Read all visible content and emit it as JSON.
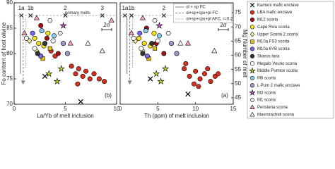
{
  "chart_data": [
    {
      "type": "scatter",
      "panel_label": "(b)",
      "x_label": "La/Yb of melt inclusion",
      "y_label": "Fo content of host olivine",
      "xlim": [
        0,
        10
      ],
      "xticks": [
        0,
        5,
        10
      ],
      "ylim": [
        70,
        90
      ],
      "yticks": [
        70,
        75,
        80,
        85,
        90
      ],
      "error_label": "2σ",
      "primary_melts": {
        "label": "primary melts",
        "fo": 87.5,
        "names": [
          "1a",
          "1b",
          "2",
          "3"
        ],
        "x": [
          0.7,
          1.6,
          5,
          8.6
        ]
      },
      "series": [
        {
          "name": "Kameni mafic enclave",
          "color": "#000000",
          "marker": "x",
          "x": [
            3.0,
            6.5
          ],
          "values": [
            75.5,
            70.5
          ]
        },
        {
          "name": "LBA mafic enclave",
          "color": "#d7301f",
          "marker": "circle",
          "x": [
            5.6,
            6.0,
            6.3,
            6.7,
            7.0,
            7.4,
            7.8,
            8.3,
            8.8,
            6.2,
            3.6,
            4.0
          ],
          "values": [
            77.5,
            76,
            77,
            75.5,
            76.5,
            75,
            76,
            75,
            74.5,
            74,
            80.5,
            79.5
          ]
        },
        {
          "name": "M12 scoria",
          "color": "#a50f15",
          "marker": "circle",
          "x": [
            2.6,
            3.2,
            4.3
          ],
          "values": [
            85.5,
            83,
            80
          ]
        },
        {
          "name": "Cape Riva scoria",
          "color": "#f7e11b",
          "marker": "circle",
          "x": [
            2.0,
            2.4,
            2.9,
            3.3
          ],
          "values": [
            83,
            82,
            81.5,
            84
          ]
        },
        {
          "name": "Upper Scoria 2 scoria",
          "color": "#fff3a0",
          "marker": "diamond",
          "x": [
            1.5,
            2.2
          ],
          "values": [
            82.5,
            80.5
          ]
        },
        {
          "name": "M10a FS3 scoria",
          "color": "#e8c400",
          "marker": "square",
          "x": [
            2.8,
            3.5
          ],
          "values": [
            79,
            81
          ]
        },
        {
          "name": "M10a 6YB scoria",
          "color": "#7b68ee",
          "marker": "circle",
          "x": [
            1.8,
            2.6
          ],
          "values": [
            84,
            79.5
          ]
        },
        {
          "name": "Skaros lava",
          "color": "#333333",
          "marker": "circle",
          "x": [
            3.0,
            2.3
          ],
          "values": [
            82,
            80
          ]
        },
        {
          "name": "Megalo Vouno scoria",
          "color": "#ffffff",
          "marker": "circle",
          "x": [
            1.2,
            2.0,
            3.8
          ],
          "values": [
            83,
            81,
            82.5
          ]
        },
        {
          "name": "Middle Pumice scoria",
          "color": "#b5e61d",
          "marker": "star",
          "x": [
            3.4,
            4.6,
            4.2
          ],
          "values": [
            76,
            77,
            74.5
          ]
        },
        {
          "name": "M6 scoria",
          "color": "#87ceeb",
          "marker": "circle",
          "x": [
            2.7,
            3.9
          ],
          "values": [
            84.5,
            83.5
          ]
        },
        {
          "name": "L Pum 2 mafic enclave",
          "color": "#9a9acb",
          "marker": "circle",
          "x": [
            5.2,
            4.8
          ],
          "values": [
            80,
            82
          ]
        },
        {
          "name": "M3 scoria",
          "color": "#c653c6",
          "marker": "star",
          "x": [
            4.8
          ],
          "values": [
            85.5
          ]
        },
        {
          "name": "M1 scoria",
          "color": "#ffffff",
          "marker": "hexagon",
          "x": [
            3.5,
            4.5
          ],
          "values": [
            86.5,
            84
          ]
        },
        {
          "name": "Peristeria scoria",
          "color": "#f4a6b8",
          "marker": "triangle",
          "x": [
            1.0,
            9.5,
            5.5,
            2.2
          ],
          "values": [
            84,
            86.5,
            82,
            87
          ]
        },
        {
          "name": "Mavrorachidi scoria",
          "color": "#ffffff",
          "marker": "triangle",
          "x": [
            7.2,
            8.6
          ],
          "values": [
            82,
            80.5
          ]
        }
      ]
    },
    {
      "type": "scatter",
      "panel_label": "(a)",
      "x_label": "Th (ppm) of melt inclusion",
      "y2_label": "Mg Number of melt",
      "xlim": [
        0,
        15
      ],
      "xticks": [
        0,
        5,
        10,
        15
      ],
      "ylim": [
        70,
        90
      ],
      "y2lim": [
        42.75,
        78.5
      ],
      "y2ticks": [
        45,
        50,
        55,
        60,
        65,
        70,
        75
      ],
      "error_label": "2σ",
      "models": [
        "ol + sp FC",
        "ol+sp+cpx+pl FC",
        "ol+sp+cpx+pl AFC, r=0.2"
      ],
      "primary_melts": {
        "label": "primary melts",
        "fo": 87.5,
        "names": [
          "1a",
          "1b",
          "2",
          "3"
        ],
        "x": [
          0.65,
          1.5,
          5.8,
          11.9
        ]
      },
      "series": [
        {
          "color": "#000000",
          "marker": "x",
          "x": [
            9,
            4
          ],
          "values": [
            72,
            75
          ]
        },
        {
          "color": "#d7301f",
          "marker": "circle",
          "x": [
            8.5,
            9.2,
            10,
            10.6,
            11.2,
            12,
            12.6,
            9.8,
            11.6,
            13,
            8.7,
            10.4
          ],
          "values": [
            77,
            75.5,
            76.5,
            75,
            76,
            74.5,
            75.5,
            74,
            77,
            76,
            78,
            73.5
          ]
        },
        {
          "color": "#a50f15",
          "marker": "circle",
          "x": [
            3.5,
            4.8,
            5.8
          ],
          "values": [
            85,
            82,
            80
          ]
        },
        {
          "color": "#f7e11b",
          "marker": "circle",
          "x": [
            2.5,
            3.2,
            4,
            4.5
          ],
          "values": [
            83,
            82,
            81.5,
            84
          ]
        },
        {
          "color": "#fff3a0",
          "marker": "diamond",
          "x": [
            2,
            3
          ],
          "values": [
            82.5,
            80.5
          ]
        },
        {
          "color": "#e8c400",
          "marker": "square",
          "x": [
            3.8,
            4.6
          ],
          "values": [
            79,
            81
          ]
        },
        {
          "color": "#7b68ee",
          "marker": "circle",
          "x": [
            2.6,
            3.6
          ],
          "values": [
            84,
            79.5
          ]
        },
        {
          "color": "#333333",
          "marker": "circle",
          "x": [
            4.2,
            3
          ],
          "values": [
            82,
            80
          ]
        },
        {
          "color": "#ffffff",
          "marker": "circle",
          "x": [
            1.8,
            2.8,
            5
          ],
          "values": [
            83,
            81,
            82.5
          ]
        },
        {
          "color": "#b5e61d",
          "marker": "star",
          "x": [
            4.8,
            6,
            5.4
          ],
          "values": [
            76,
            77,
            74.5
          ]
        },
        {
          "color": "#87ceeb",
          "marker": "circle",
          "x": [
            3.4,
            5.2
          ],
          "values": [
            84.5,
            83.5
          ]
        },
        {
          "color": "#9a9acb",
          "marker": "circle",
          "x": [
            7.5,
            6.8
          ],
          "values": [
            80,
            82
          ]
        },
        {
          "color": "#c653c6",
          "marker": "star",
          "x": [
            5.2
          ],
          "values": [
            85.5
          ]
        },
        {
          "color": "#ffffff",
          "marker": "hexagon",
          "x": [
            4.6,
            6.4
          ],
          "values": [
            86.5,
            84
          ]
        },
        {
          "color": "#f4a6b8",
          "marker": "triangle",
          "x": [
            1.5,
            14,
            9,
            3
          ],
          "values": [
            84,
            87,
            82,
            87
          ]
        },
        {
          "color": "#ffffff",
          "marker": "triangle",
          "x": [
            8,
            12.5
          ],
          "values": [
            82,
            80.5
          ]
        }
      ]
    }
  ]
}
